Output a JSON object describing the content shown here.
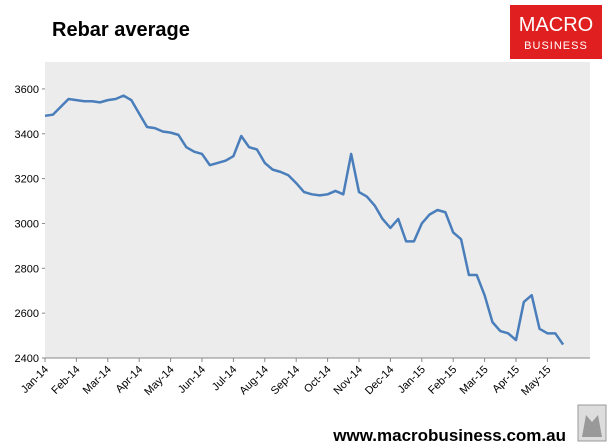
{
  "chart_data": {
    "type": "line",
    "title": "Rebar average",
    "logo_top": "MACRO",
    "logo_bottom": "BUSINESS",
    "footer": "www.macrobusiness.com.au",
    "categories": [
      "Jan-14",
      null,
      null,
      null,
      "Feb-14",
      null,
      null,
      null,
      "Mar-14",
      null,
      null,
      null,
      "Apr-14",
      null,
      null,
      null,
      "May-14",
      null,
      null,
      null,
      "Jun-14",
      null,
      null,
      null,
      "Jul-14",
      null,
      null,
      null,
      "Aug-14",
      null,
      null,
      null,
      "Sep-14",
      null,
      null,
      null,
      "Oct-14",
      null,
      null,
      null,
      "Nov-14",
      null,
      null,
      null,
      "Dec-14",
      null,
      null,
      null,
      "Jan-15",
      null,
      null,
      null,
      "Feb-15",
      null,
      null,
      null,
      "Mar-15",
      null,
      null,
      null,
      "Apr-15",
      null,
      null,
      null,
      "May-15",
      null,
      null
    ],
    "series": [
      {
        "name": "Rebar average",
        "color": "#4a7ebb",
        "values": [
          3480,
          3485,
          3520,
          3555,
          3550,
          3545,
          3545,
          3540,
          3550,
          3555,
          3570,
          3550,
          3490,
          3430,
          3425,
          3410,
          3405,
          3395,
          3340,
          3320,
          3310,
          3260,
          3270,
          3280,
          3300,
          3390,
          3340,
          3330,
          3270,
          3240,
          3230,
          3215,
          3180,
          3140,
          3130,
          3125,
          3130,
          3145,
          3130,
          3310,
          3140,
          3120,
          3080,
          3020,
          2980,
          3020,
          2920,
          2920,
          3000,
          3040,
          3060,
          3050,
          2960,
          2930,
          2770,
          2770,
          2680,
          2560,
          2520,
          2510,
          2480,
          2650,
          2680,
          2530,
          2510,
          2510,
          2460
        ]
      }
    ],
    "ylim": [
      2400,
      3720
    ],
    "yticks": [
      2400,
      2600,
      2800,
      3000,
      3200,
      3400,
      3600
    ]
  }
}
